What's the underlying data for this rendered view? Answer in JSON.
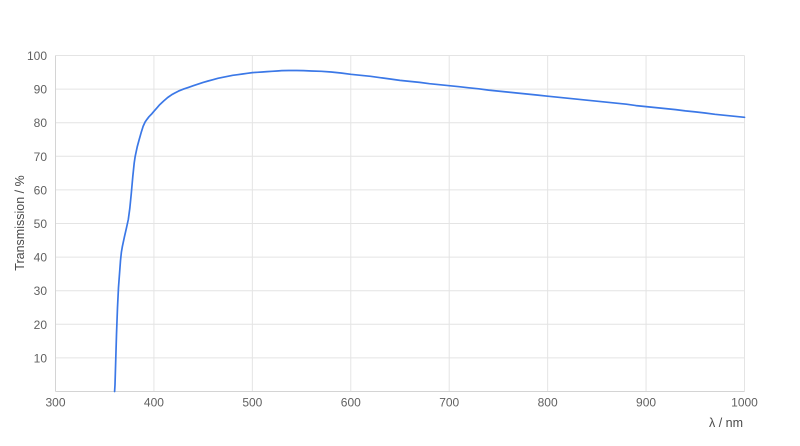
{
  "chart_data": {
    "type": "line",
    "title": "",
    "xlabel": "λ / nm",
    "ylabel": "Transmission / %",
    "xlim": [
      300,
      1000
    ],
    "ylim": [
      0,
      100
    ],
    "x_ticks": [
      300,
      400,
      500,
      600,
      700,
      800,
      900,
      1000
    ],
    "y_ticks": [
      10,
      20,
      30,
      40,
      50,
      60,
      70,
      80,
      90,
      100
    ],
    "grid": true,
    "legend": false,
    "background": "#ffffff",
    "series": [
      {
        "name": "transmission",
        "color": "#3b78e7",
        "points": [
          [
            360,
            0
          ],
          [
            360.5,
            2
          ],
          [
            361,
            7
          ],
          [
            361.5,
            12
          ],
          [
            362,
            17
          ],
          [
            363,
            25
          ],
          [
            364,
            31
          ],
          [
            365,
            35
          ],
          [
            366,
            39
          ],
          [
            367,
            41.5
          ],
          [
            368,
            43.2
          ],
          [
            370,
            46
          ],
          [
            372,
            48.6
          ],
          [
            374,
            51.2
          ],
          [
            375.5,
            54.5
          ],
          [
            377,
            59
          ],
          [
            378.5,
            64
          ],
          [
            380,
            68
          ],
          [
            381,
            70
          ],
          [
            383,
            72.8
          ],
          [
            385,
            75
          ],
          [
            387,
            77
          ],
          [
            389,
            78.9
          ],
          [
            391,
            80.2
          ],
          [
            393,
            81
          ],
          [
            395,
            81.8
          ],
          [
            398,
            82.7
          ],
          [
            400,
            83.4
          ],
          [
            403,
            84.4
          ],
          [
            406,
            85.4
          ],
          [
            410,
            86.5
          ],
          [
            414,
            87.5
          ],
          [
            418,
            88.3
          ],
          [
            421,
            88.8
          ],
          [
            425,
            89.4
          ],
          [
            430,
            90
          ],
          [
            435,
            90.5
          ],
          [
            440,
            91
          ],
          [
            445,
            91.5
          ],
          [
            450,
            92
          ],
          [
            455,
            92.4
          ],
          [
            460,
            92.8
          ],
          [
            465,
            93.2
          ],
          [
            470,
            93.5
          ],
          [
            475,
            93.8
          ],
          [
            480,
            94.1
          ],
          [
            485,
            94.3
          ],
          [
            490,
            94.5
          ],
          [
            495,
            94.7
          ],
          [
            500,
            94.9
          ],
          [
            505,
            95
          ],
          [
            510,
            95.1
          ],
          [
            515,
            95.2
          ],
          [
            520,
            95.3
          ],
          [
            525,
            95.4
          ],
          [
            530,
            95.5
          ],
          [
            537,
            95.55
          ],
          [
            545,
            95.55
          ],
          [
            552,
            95.5
          ],
          [
            560,
            95.4
          ],
          [
            570,
            95.3
          ],
          [
            580,
            95.1
          ],
          [
            590,
            94.8
          ],
          [
            600,
            94.4
          ],
          [
            610,
            94.1
          ],
          [
            620,
            93.8
          ],
          [
            630,
            93.4
          ],
          [
            640,
            93
          ],
          [
            650,
            92.6
          ],
          [
            660,
            92.3
          ],
          [
            670,
            92
          ],
          [
            680,
            91.6
          ],
          [
            690,
            91.3
          ],
          [
            700,
            91
          ],
          [
            710,
            90.7
          ],
          [
            720,
            90.4
          ],
          [
            730,
            90.1
          ],
          [
            740,
            89.7
          ],
          [
            750,
            89.4
          ],
          [
            760,
            89.1
          ],
          [
            770,
            88.8
          ],
          [
            780,
            88.5
          ],
          [
            790,
            88.2
          ],
          [
            800,
            87.9
          ],
          [
            810,
            87.6
          ],
          [
            820,
            87.3
          ],
          [
            830,
            87
          ],
          [
            840,
            86.7
          ],
          [
            850,
            86.4
          ],
          [
            860,
            86.1
          ],
          [
            870,
            85.8
          ],
          [
            880,
            85.5
          ],
          [
            890,
            85.1
          ],
          [
            900,
            84.8
          ],
          [
            910,
            84.5
          ],
          [
            920,
            84.2
          ],
          [
            930,
            83.9
          ],
          [
            940,
            83.5
          ],
          [
            950,
            83.2
          ],
          [
            960,
            82.9
          ],
          [
            970,
            82.5
          ],
          [
            980,
            82.2
          ],
          [
            990,
            81.9
          ],
          [
            1000,
            81.6
          ]
        ]
      }
    ]
  }
}
